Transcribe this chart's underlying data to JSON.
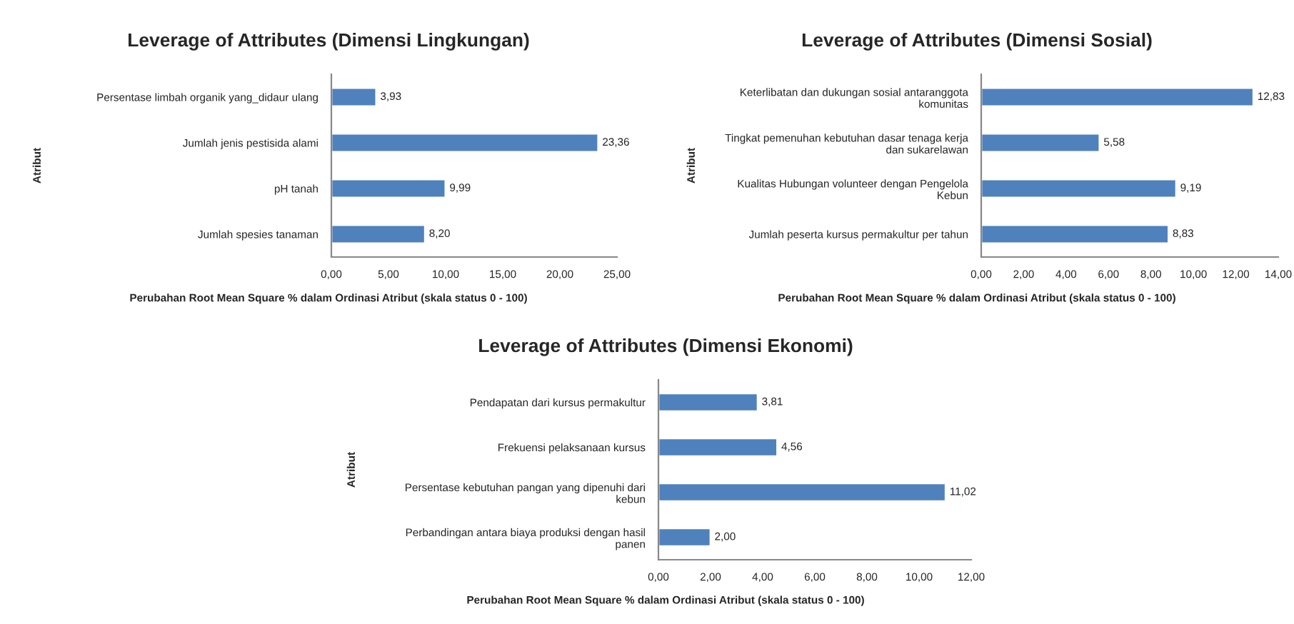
{
  "chart_data": [
    {
      "type": "bar",
      "orientation": "horizontal",
      "title": "Leverage of Attributes (Dimensi Lingkungan)",
      "xlabel": "Perubahan Root Mean Square % dalam Ordinasi Atribut (skala status 0 - 100)",
      "ylabel": "Atribut",
      "categories": [
        "Persentase limbah organik yang_didaur ulang",
        "Jumlah jenis pestisida alami",
        "pH tanah",
        "Jumlah spesies tanaman"
      ],
      "values": [
        3.93,
        23.36,
        9.99,
        8.2
      ],
      "value_labels": [
        "3,93",
        "23,36",
        "9,99",
        "8,20"
      ],
      "color": "#4f81bd",
      "xlim": [
        0,
        25
      ],
      "xticks": [
        {
          "value": 0,
          "label": "0,00"
        },
        {
          "value": 5,
          "label": "5,00"
        },
        {
          "value": 10,
          "label": "10,00"
        },
        {
          "value": 15,
          "label": "15,00"
        },
        {
          "value": 20,
          "label": "20,00"
        },
        {
          "value": 25,
          "label": "25,00"
        }
      ]
    },
    {
      "type": "bar",
      "orientation": "horizontal",
      "title": "Leverage of Attributes (Dimensi Sosial)",
      "xlabel": "Perubahan Root Mean Square % dalam Ordinasi Atribut (skala status 0 - 100)",
      "ylabel": "Atribut",
      "categories": [
        "Keterlibatan dan dukungan sosial antaranggota\nkomunitas",
        "Tingkat pemenuhan kebutuhan dasar tenaga kerja\ndan sukarelawan",
        "Kualitas Hubungan volunteer dengan Pengelola\nKebun",
        "Jumlah peserta kursus permakultur per tahun"
      ],
      "values": [
        12.83,
        5.58,
        9.19,
        8.83
      ],
      "value_labels": [
        "12,83",
        "5,58",
        "9,19",
        "8,83"
      ],
      "color": "#4f81bd",
      "xlim": [
        0,
        14
      ],
      "xticks": [
        {
          "value": 0,
          "label": "0,00"
        },
        {
          "value": 2,
          "label": "2,00"
        },
        {
          "value": 4,
          "label": "4,00"
        },
        {
          "value": 6,
          "label": "6,00"
        },
        {
          "value": 8,
          "label": "8,00"
        },
        {
          "value": 10,
          "label": "10,00"
        },
        {
          "value": 12,
          "label": "12,00"
        },
        {
          "value": 14,
          "label": "14,00"
        }
      ]
    },
    {
      "type": "bar",
      "orientation": "horizontal",
      "title": "Leverage of Attributes (Dimensi Ekonomi)",
      "xlabel": "Perubahan Root Mean Square % dalam Ordinasi Atribut (skala status 0 - 100)",
      "ylabel": "Atribut",
      "categories": [
        "Pendapatan dari kursus permakultur",
        "Frekuensi pelaksanaan kursus",
        "Persentase kebutuhan pangan yang dipenuhi dari\nkebun",
        "Perbandingan antara biaya produksi dengan hasil\npanen"
      ],
      "values": [
        3.81,
        4.56,
        11.02,
        2.0
      ],
      "value_labels": [
        "3,81",
        "4,56",
        "11,02",
        "2,00"
      ],
      "color": "#4f81bd",
      "xlim": [
        0,
        12
      ],
      "xticks": [
        {
          "value": 0,
          "label": "0,00"
        },
        {
          "value": 2,
          "label": "2,00"
        },
        {
          "value": 4,
          "label": "4,00"
        },
        {
          "value": 6,
          "label": "6,00"
        },
        {
          "value": 8,
          "label": "8,00"
        },
        {
          "value": 10,
          "label": "10,00"
        },
        {
          "value": 12,
          "label": "12,00"
        }
      ]
    }
  ]
}
